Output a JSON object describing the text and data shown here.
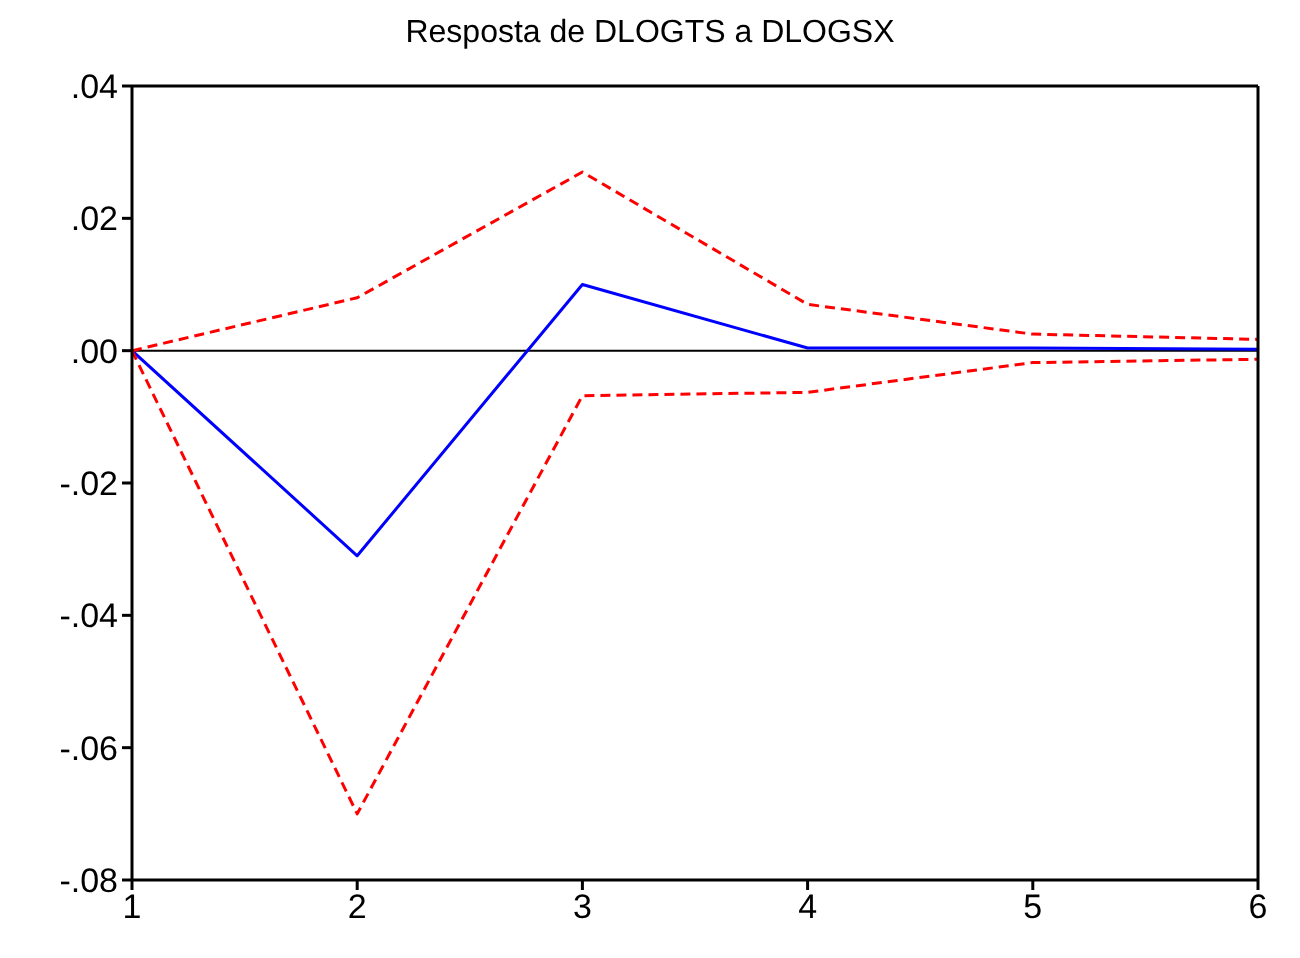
{
  "chart_data": {
    "type": "line",
    "title": "Resposta de DLOGTS a DLOGSX",
    "x": [
      1,
      2,
      3,
      4,
      5,
      6
    ],
    "series": [
      {
        "color": "#0000ff",
        "line_style": "solid",
        "values": [
          0,
          -0.031,
          0.01,
          0.0004,
          0.0004,
          0.0002
        ]
      },
      {
        "color": "#ff0000",
        "line_style": "dashed",
        "values": [
          0,
          0.008,
          0.027,
          0.007,
          0.0025,
          0.0017
        ]
      },
      {
        "color": "#ff0000",
        "line_style": "dashed",
        "values": [
          0,
          -0.07,
          -0.0068,
          -0.0063,
          -0.0018,
          -0.0013
        ]
      }
    ],
    "xlim": [
      1,
      6
    ],
    "xticks": [
      1,
      2,
      3,
      4,
      5,
      6
    ],
    "ylim": [
      -0.08,
      0.04
    ],
    "yticks": [
      {
        "value": -0.08,
        "label": "-.08"
      },
      {
        "value": -0.06,
        "label": "-.06"
      },
      {
        "value": -0.04,
        "label": "-.04"
      },
      {
        "value": -0.02,
        "label": "-.02"
      },
      {
        "value": 0,
        "label": ".00"
      },
      {
        "value": 0.02,
        "label": ".02"
      },
      {
        "value": 0.04,
        "label": ".04"
      }
    ],
    "ref_lines": [
      {
        "axis": "y",
        "value": 0,
        "color": "#000000"
      }
    ],
    "grid": false,
    "legend": false,
    "marker": "none"
  }
}
